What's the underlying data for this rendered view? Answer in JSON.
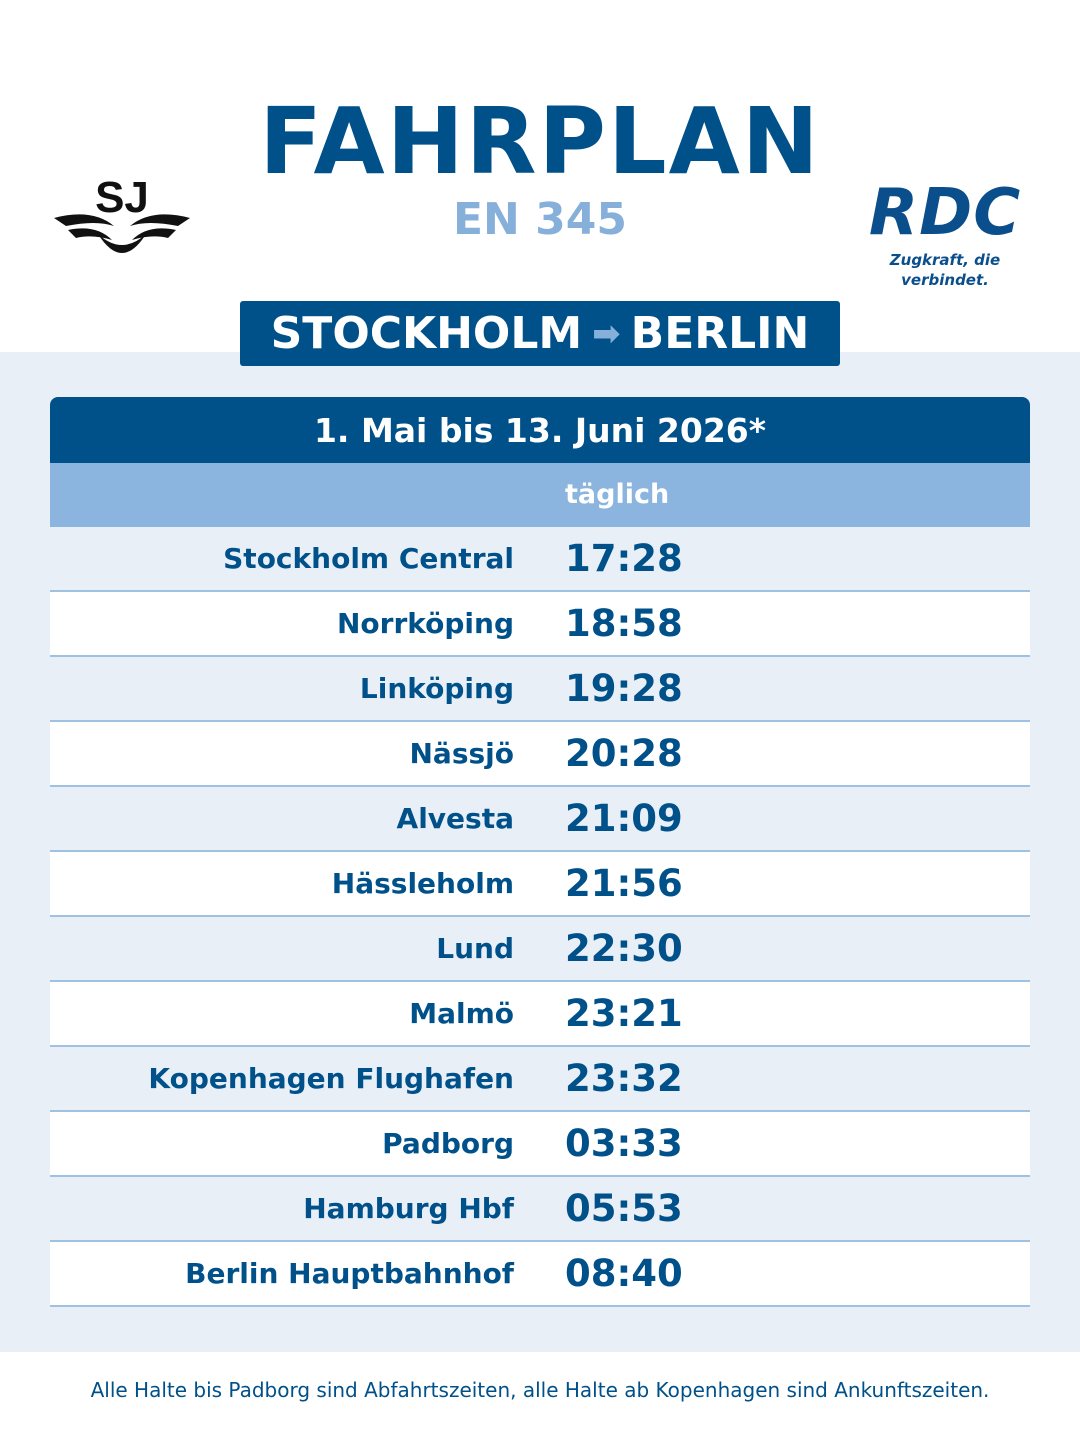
{
  "header": {
    "title": "FAHRPLAN",
    "train": "EN 345",
    "left_logo": {
      "text": "SJ",
      "icon": "sj-winged-logo-icon"
    },
    "right_logo": {
      "name": "RDC",
      "tagline": "Zugkraft, die verbindet."
    }
  },
  "route": {
    "from": "STOCKHOLM",
    "to": "BERLIN",
    "icon": "arrow-right-icon"
  },
  "timetable": {
    "period": "1. Mai bis 13. Juni 2026*",
    "day_label": "täglich",
    "stops": [
      {
        "name": "Stockholm Central",
        "time": "17:28"
      },
      {
        "name": "Norrköping",
        "time": "18:58"
      },
      {
        "name": "Linköping",
        "time": "19:28"
      },
      {
        "name": "Nässjö",
        "time": "20:28"
      },
      {
        "name": "Alvesta",
        "time": "21:09"
      },
      {
        "name": "Hässleholm",
        "time": "21:56"
      },
      {
        "name": "Lund",
        "time": "22:30"
      },
      {
        "name": "Malmö",
        "time": "23:21"
      },
      {
        "name": "Kopenhagen Flughafen",
        "time": "23:32"
      },
      {
        "name": "Padborg",
        "time": "03:33"
      },
      {
        "name": "Hamburg Hbf",
        "time": "05:53"
      },
      {
        "name": "Berlin Hauptbahnhof",
        "time": "08:40"
      }
    ]
  },
  "footnote": "Alle Halte bis Padborg sind Abfahrtszeiten, alle Halte ab Kopenhagen sind Ankunftszeiten.",
  "colors": {
    "primary": "#00508a",
    "light_blue": "#86b0da",
    "header_row": "#8bb5de",
    "band": "#e8eff7"
  }
}
